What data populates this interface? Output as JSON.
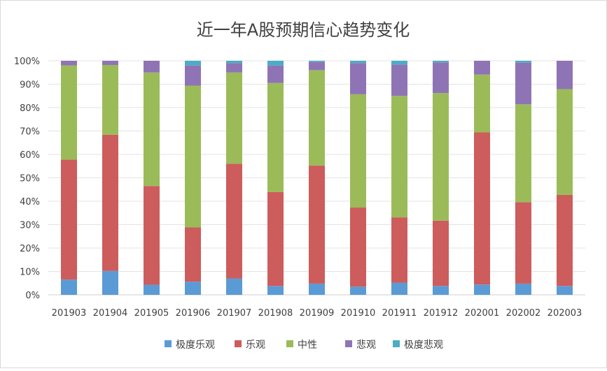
{
  "chart_data": {
    "type": "bar",
    "stacked": true,
    "title": "近一年A股预期信心趋势变化",
    "categories": [
      "201903",
      "201904",
      "201905",
      "201906",
      "201907",
      "201908",
      "201909",
      "201910",
      "201911",
      "201912",
      "202001",
      "202002",
      "202003"
    ],
    "ylim": [
      0,
      100
    ],
    "y_ticks": [
      "0%",
      "10%",
      "20%",
      "30%",
      "40%",
      "50%",
      "60%",
      "70%",
      "80%",
      "90%",
      "100%"
    ],
    "grid": true,
    "legend_position": "bottom",
    "series": [
      {
        "name": "极度乐观",
        "color": "#5b9bd5",
        "values": [
          6.5,
          10.2,
          4.3,
          5.6,
          7.0,
          3.8,
          4.8,
          3.5,
          5.2,
          3.8,
          4.4,
          4.8,
          3.8
        ]
      },
      {
        "name": "乐观",
        "color": "#cd5c5c",
        "values": [
          51.3,
          58.2,
          42.2,
          23.2,
          49.0,
          40.1,
          50.4,
          33.8,
          27.9,
          27.9,
          65.0,
          34.8,
          38.9
        ]
      },
      {
        "name": "中性",
        "color": "#9bbb59",
        "values": [
          40.2,
          29.8,
          48.5,
          60.6,
          39.0,
          46.6,
          40.8,
          48.4,
          51.9,
          54.5,
          24.7,
          41.8,
          45.2
        ]
      },
      {
        "name": "悲观",
        "color": "#8f74b5",
        "values": [
          2.0,
          1.8,
          5.0,
          8.6,
          4.0,
          7.5,
          3.5,
          13.3,
          13.4,
          13.1,
          5.9,
          17.8,
          12.1
        ]
      },
      {
        "name": "极度悲观",
        "color": "#4bacc6",
        "values": [
          0.0,
          0.0,
          0.0,
          2.0,
          1.0,
          2.0,
          0.5,
          1.0,
          1.6,
          0.7,
          0.0,
          0.8,
          0.0
        ]
      }
    ]
  }
}
